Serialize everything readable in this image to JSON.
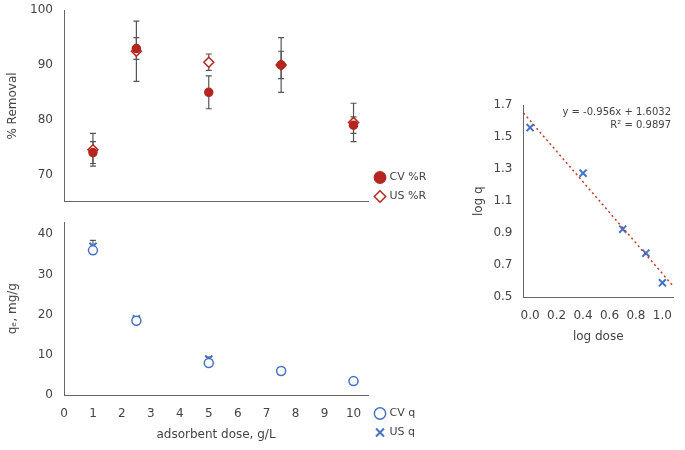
{
  "chart_data": [
    {
      "type": "scatter",
      "ylabel": "% Removal",
      "x": [
        1,
        2.5,
        5,
        7.5,
        10
      ],
      "series": [
        {
          "name": "CV %R",
          "color": "#b5261e",
          "marker": "circle",
          "values": [
            74.0,
            93.0,
            85.0,
            90.0,
            79.0
          ],
          "errors": [
            2.0,
            2.0,
            3.0,
            2.5,
            1.5
          ]
        },
        {
          "name": "US %R",
          "color": "#b5261e",
          "marker": "open-diamond",
          "values": [
            74.5,
            92.5,
            90.5,
            90.0,
            79.5
          ],
          "errors": [
            3.0,
            5.5,
            1.5,
            5.0,
            3.5
          ]
        }
      ],
      "xlim": [
        0,
        10.5
      ],
      "ylim": [
        65,
        100
      ],
      "yticks": [
        70,
        80,
        90,
        100
      ],
      "grid": false,
      "legend": "lower right",
      "tick_labels": "y"
    },
    {
      "type": "scatter",
      "xlabel": "adsorbent dose, g/L",
      "ylabel": "qₑ, mg/g",
      "x": [
        1,
        2.5,
        5,
        7.5,
        10
      ],
      "series": [
        {
          "name": "CV q",
          "color": "#4472c4",
          "marker": "open-circle",
          "values": [
            36.0,
            18.5,
            8.0,
            6.0,
            3.5
          ],
          "errors": [
            1.0,
            0.5,
            0.5,
            0.3,
            0.2
          ]
        },
        {
          "name": "US q",
          "color": "#4472c4",
          "marker": "x",
          "values": [
            37.0,
            19.0,
            9.0,
            6.0,
            3.5
          ],
          "errors": [
            1.5,
            0.5,
            0.5,
            0.3,
            0.2
          ]
        }
      ],
      "xlim": [
        0,
        10.5
      ],
      "xticks": [
        0,
        1,
        2,
        3,
        4,
        5,
        6,
        7,
        8,
        9,
        10
      ],
      "ylim": [
        0,
        43
      ],
      "yticks": [
        0,
        10,
        20,
        30,
        40
      ],
      "grid": false,
      "legend": "lower right"
    },
    {
      "type": "scatter",
      "xlabel": "log dose",
      "ylabel": "log q",
      "x": [
        0,
        0.4,
        0.7,
        0.875,
        1.0
      ],
      "series": [
        {
          "color": "#4472c4",
          "marker": "x",
          "values": [
            1.56,
            1.275,
            0.925,
            0.775,
            0.59
          ]
        }
      ],
      "fit": {
        "slope": -0.956,
        "intercept": 1.6032,
        "color": "#c0392b",
        "line_style": "dotted"
      },
      "annotations": [
        "y = -0.956x + 1.6032",
        "R² = 0.9897"
      ],
      "xlim": [
        -0.05,
        1.08
      ],
      "xticks": [
        {
          "value": 0,
          "label": "0.0"
        },
        0.2,
        0.4,
        0.6,
        0.8,
        {
          "value": 1.0,
          "label": "1.0"
        }
      ],
      "ylim": [
        0.5,
        1.7
      ],
      "yticks": [
        0.5,
        0.7,
        0.9,
        1.1,
        1.3,
        1.5,
        1.7
      ],
      "grid": false
    }
  ]
}
